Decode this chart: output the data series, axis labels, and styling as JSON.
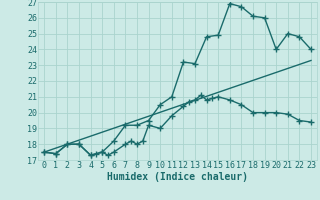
{
  "xlabel": "Humidex (Indice chaleur)",
  "xlim": [
    -0.5,
    23.5
  ],
  "ylim": [
    17,
    27
  ],
  "xticks": [
    0,
    1,
    2,
    3,
    4,
    5,
    6,
    7,
    8,
    9,
    10,
    11,
    12,
    13,
    14,
    15,
    16,
    17,
    18,
    19,
    20,
    21,
    22,
    23
  ],
  "yticks": [
    17,
    18,
    19,
    20,
    21,
    22,
    23,
    24,
    25,
    26,
    27
  ],
  "bg_color": "#cceae6",
  "grid_color": "#aad4ce",
  "line_color": "#1a6b6b",
  "line1_x": [
    0,
    1,
    2,
    3,
    4,
    4.5,
    5,
    5.5,
    6,
    7,
    7.5,
    8,
    8.5,
    9,
    10,
    11,
    12,
    12.5,
    13,
    13.5,
    14,
    14.5,
    15,
    16,
    17,
    18,
    19,
    20,
    21,
    22,
    23
  ],
  "line1_y": [
    17.5,
    17.4,
    18.0,
    18.0,
    17.3,
    17.4,
    17.5,
    17.3,
    17.5,
    18.0,
    18.2,
    18.0,
    18.2,
    19.2,
    19.0,
    19.8,
    20.4,
    20.7,
    20.8,
    21.1,
    20.8,
    20.9,
    21.0,
    20.8,
    20.5,
    20.0,
    20.0,
    20.0,
    19.9,
    19.5,
    19.4
  ],
  "line2_x": [
    0,
    1,
    2,
    3,
    4,
    5,
    6,
    7,
    8,
    9,
    10,
    11,
    12,
    13,
    14,
    15,
    16,
    17,
    18,
    19,
    20,
    21,
    22,
    23
  ],
  "line2_y": [
    17.5,
    17.4,
    18.0,
    18.0,
    17.3,
    17.5,
    18.2,
    19.2,
    19.2,
    19.5,
    20.5,
    21.0,
    23.2,
    23.1,
    24.8,
    24.9,
    26.9,
    26.7,
    26.1,
    26.0,
    24.0,
    25.0,
    24.8,
    24.0
  ],
  "line3_x": [
    0,
    23
  ],
  "line3_y": [
    17.5,
    23.3
  ],
  "marker": "+",
  "markersize": 4,
  "linewidth": 1.0,
  "xlabel_fontsize": 7,
  "tick_fontsize": 6
}
